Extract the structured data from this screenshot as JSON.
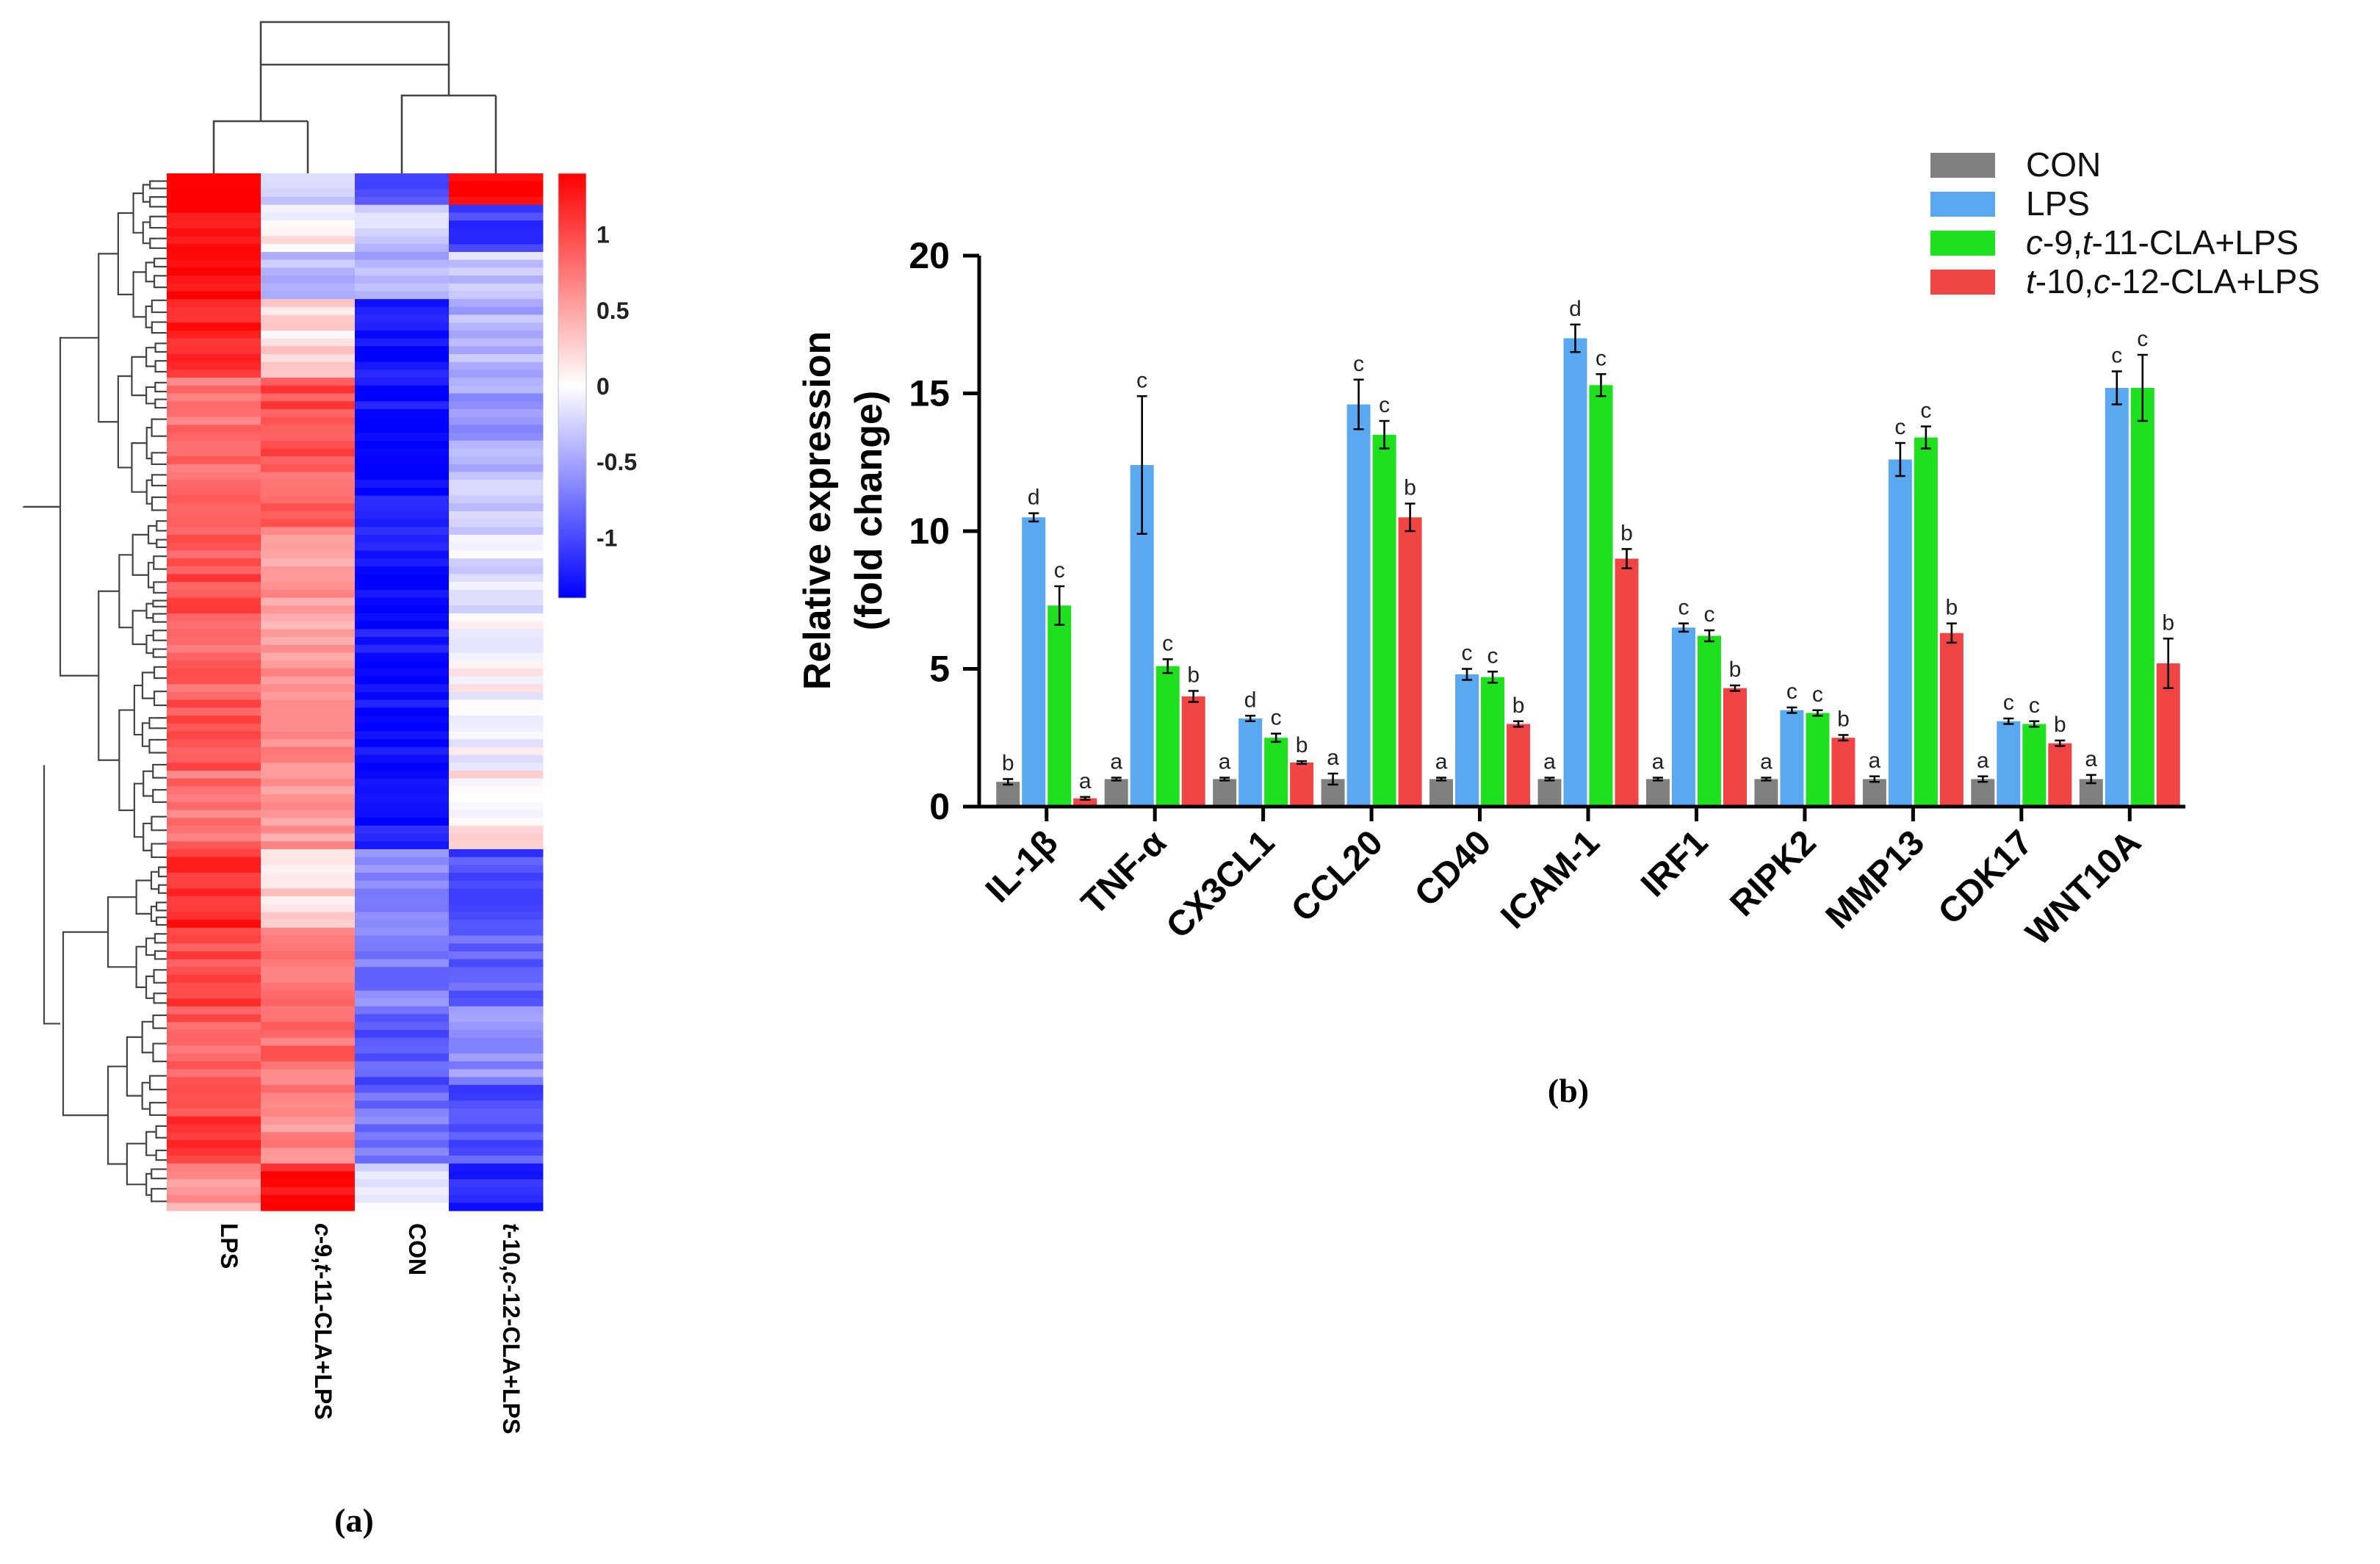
{
  "chart_data": [
    {
      "id": "a",
      "type": "heatmap",
      "panel_label": "(a)",
      "columns": [
        "LPS",
        "c-9,t-11-CLA+LPS",
        "CON",
        "t-10,c-12-CLA+LPS"
      ],
      "column_label_parts": [
        [
          {
            "t": "LPS",
            "i": false
          }
        ],
        [
          {
            "t": "c",
            "i": true
          },
          {
            "t": "-9,",
            "i": false
          },
          {
            "t": "t",
            "i": true
          },
          {
            "t": "-11-CLA+LPS",
            "i": false
          }
        ],
        [
          {
            "t": "CON",
            "i": false
          }
        ],
        [
          {
            "t": "t",
            "i": true
          },
          {
            "t": "-10,",
            "i": false
          },
          {
            "t": "c",
            "i": true
          },
          {
            "t": "-12-CLA+LPS",
            "i": false
          }
        ]
      ],
      "colorbar": {
        "ticks": [
          "1",
          "0.5",
          "0",
          "-0.5",
          "-1"
        ],
        "range": [
          -1.4,
          1.4
        ],
        "colors": {
          "low": "#0000ff",
          "mid": "#ffffff",
          "high": "#ff0000"
        }
      },
      "row_blocks": [
        {
          "n": 4,
          "values": [
            1.4,
            -0.2,
            -0.9,
            1.4
          ]
        },
        {
          "n": 6,
          "values": [
            1.35,
            0.05,
            -0.3,
            -1.1
          ]
        },
        {
          "n": 6,
          "values": [
            1.4,
            -0.4,
            -0.4,
            -0.3
          ]
        },
        {
          "n": 10,
          "values": [
            1.2,
            0.2,
            -1.3,
            -0.45
          ]
        },
        {
          "n": 10,
          "values": [
            0.8,
            1.0,
            -1.3,
            -0.5
          ]
        },
        {
          "n": 10,
          "values": [
            0.85,
            0.8,
            -1.3,
            -0.35
          ]
        },
        {
          "n": 10,
          "values": [
            0.95,
            0.55,
            -1.3,
            -0.15
          ]
        },
        {
          "n": 10,
          "values": [
            0.85,
            0.55,
            -1.3,
            0.02
          ]
        },
        {
          "n": 10,
          "values": [
            0.9,
            0.6,
            -1.3,
            -0.05
          ]
        },
        {
          "n": 10,
          "values": [
            0.8,
            0.6,
            -1.3,
            0.1
          ]
        },
        {
          "n": 10,
          "values": [
            1.2,
            0.2,
            -0.6,
            -1.0
          ]
        },
        {
          "n": 10,
          "values": [
            1.0,
            0.75,
            -0.7,
            -0.85
          ]
        },
        {
          "n": 10,
          "values": [
            0.9,
            0.8,
            -0.9,
            -0.6
          ]
        },
        {
          "n": 10,
          "values": [
            1.05,
            0.65,
            -0.75,
            -0.95
          ]
        },
        {
          "n": 6,
          "values": [
            0.55,
            1.3,
            -0.2,
            -1.2
          ]
        }
      ]
    },
    {
      "id": "b",
      "type": "bar",
      "panel_label": "(b)",
      "ylabel_line1": "Relative expression",
      "ylabel_line2": "(fold change)",
      "ylim": [
        0,
        20
      ],
      "yticks": [
        0,
        5,
        10,
        15,
        20
      ],
      "categories": [
        "IL-1β",
        "TNF-α",
        "CX3CL1",
        "CCL20",
        "CD40",
        "ICAM-1",
        "IRF1",
        "RIPK2",
        "MMP13",
        "CDK17",
        "WNT10A"
      ],
      "series": [
        {
          "name": "CON",
          "legend_parts": [
            {
              "t": "CON",
              "i": false
            }
          ],
          "color": "#808080",
          "values": [
            0.9,
            1.0,
            1.0,
            1.0,
            1.0,
            1.0,
            1.0,
            1.0,
            1.0,
            1.0,
            1.0
          ],
          "errors": [
            0.1,
            0.05,
            0.05,
            0.2,
            0.05,
            0.05,
            0.05,
            0.05,
            0.1,
            0.1,
            0.15
          ],
          "letters": [
            "b",
            "a",
            "a",
            "a",
            "a",
            "a",
            "a",
            "a",
            "a",
            "a",
            "a"
          ]
        },
        {
          "name": "LPS",
          "legend_parts": [
            {
              "t": "LPS",
              "i": false
            }
          ],
          "color": "#5aa8ef",
          "values": [
            10.5,
            12.4,
            3.2,
            14.6,
            4.8,
            17.0,
            6.5,
            3.5,
            12.6,
            3.1,
            15.2
          ],
          "errors": [
            0.15,
            2.5,
            0.1,
            0.9,
            0.2,
            0.5,
            0.15,
            0.1,
            0.6,
            0.1,
            0.6
          ],
          "letters": [
            "d",
            "c",
            "d",
            "c",
            "c",
            "d",
            "c",
            "c",
            "c",
            "c",
            "c"
          ]
        },
        {
          "name": "c-9,t-11-CLA+LPS",
          "legend_parts": [
            {
              "t": "c",
              "i": true
            },
            {
              "t": "-9,",
              "i": false
            },
            {
              "t": "t",
              "i": true
            },
            {
              "t": "-11-CLA+LPS",
              "i": false
            }
          ],
          "color": "#1fe01f",
          "values": [
            7.3,
            5.1,
            2.5,
            13.5,
            4.7,
            15.3,
            6.2,
            3.4,
            13.4,
            3.0,
            15.2
          ],
          "errors": [
            0.7,
            0.25,
            0.15,
            0.5,
            0.2,
            0.4,
            0.2,
            0.1,
            0.4,
            0.1,
            1.2
          ],
          "letters": [
            "c",
            "c",
            "c",
            "c",
            "c",
            "c",
            "c",
            "c",
            "c",
            "c",
            "c"
          ]
        },
        {
          "name": "t-10,c-12-CLA+LPS",
          "legend_parts": [
            {
              "t": "t",
              "i": true
            },
            {
              "t": "-10,",
              "i": false
            },
            {
              "t": "c",
              "i": true
            },
            {
              "t": "-12-CLA+LPS",
              "i": false
            }
          ],
          "color": "#f14545",
          "values": [
            0.3,
            4.0,
            1.6,
            10.5,
            3.0,
            9.0,
            4.3,
            2.5,
            6.3,
            2.3,
            5.2
          ],
          "errors": [
            0.05,
            0.2,
            0.05,
            0.5,
            0.1,
            0.35,
            0.1,
            0.1,
            0.35,
            0.1,
            0.9
          ],
          "letters": [
            "a",
            "b",
            "b",
            "b",
            "b",
            "b",
            "b",
            "b",
            "b",
            "b",
            "b"
          ]
        }
      ]
    }
  ]
}
